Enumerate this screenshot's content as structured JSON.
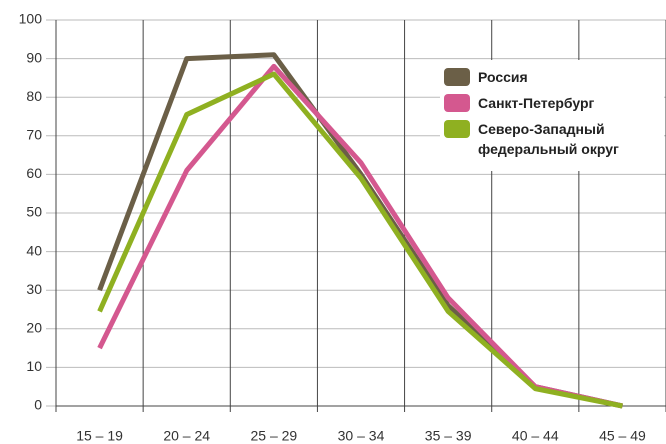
{
  "chart_data": {
    "type": "line",
    "categories": [
      "15 – 19",
      "20 – 24",
      "25 – 29",
      "30 – 34",
      "35 – 39",
      "40 – 44",
      "45 – 49"
    ],
    "series": [
      {
        "name": "Россия",
        "color": "#6b5f47",
        "values": [
          30,
          90,
          91,
          60,
          26,
          5,
          0
        ]
      },
      {
        "name": "Санкт-Петербург",
        "color": "#d4588f",
        "values": [
          15,
          61,
          88,
          63,
          28,
          5,
          0
        ]
      },
      {
        "name": "Северо-Западный федеральный округ",
        "color": "#8fb021",
        "values": [
          24.5,
          75.5,
          86,
          59,
          24.5,
          4.5,
          0
        ]
      }
    ],
    "ylim": [
      0,
      100
    ],
    "yticks": [
      0,
      10,
      20,
      30,
      40,
      50,
      60,
      70,
      80,
      90,
      100
    ],
    "grid": true,
    "legend": "upper right"
  }
}
